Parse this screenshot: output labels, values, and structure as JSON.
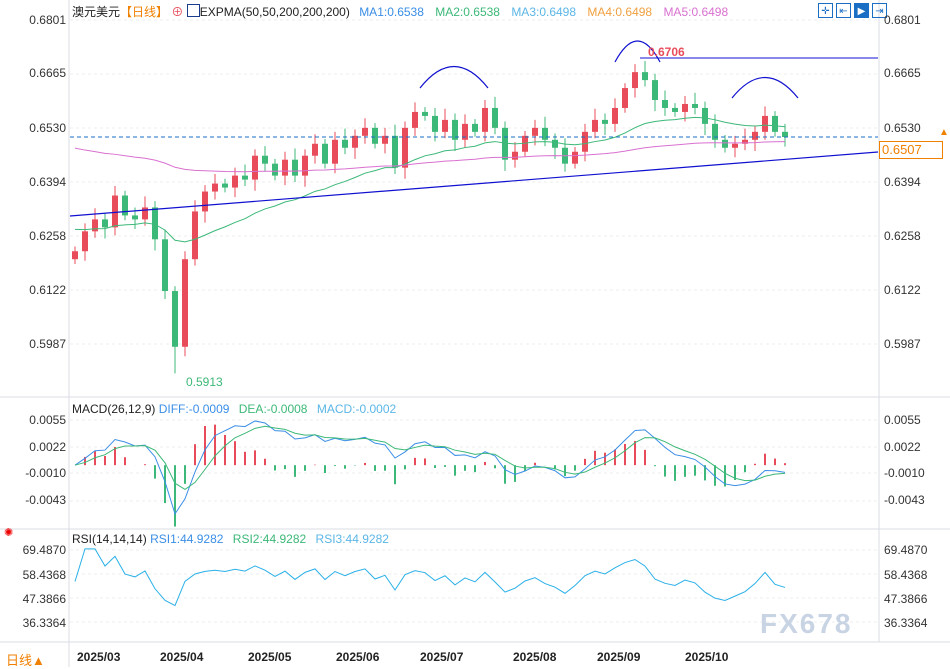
{
  "header": {
    "symbol": "澳元美元",
    "period": "【日线】",
    "indicator": "EXPMA(50,50,200,200,200)",
    "ma1": "MA1:0.6538",
    "ma2": "MA2:0.6538",
    "ma3": "MA3:0.6498",
    "ma4": "MA4:0.6498",
    "ma5": "MA5:0.6498"
  },
  "toolbar": [
    "crosshair",
    "fit-range",
    "play",
    "goto-end"
  ],
  "price_axis": [
    "0.6801",
    "0.6665",
    "0.6530",
    "0.6394",
    "0.6258",
    "0.6122",
    "0.5987"
  ],
  "current_price": "0.6507",
  "annotations": {
    "high": "0.6706",
    "low": "0.5913"
  },
  "macd": {
    "title": "MACD(26,12,9)",
    "diff": "DIFF:-0.0009",
    "dea": "DEA:-0.0008",
    "macd": "MACD:-0.0002",
    "axis": [
      "0.0055",
      "0.0022",
      "-0.0010",
      "-0.0043"
    ]
  },
  "rsi": {
    "title": "RSI(14,14,14)",
    "rsi1": "RSI1:44.9282",
    "rsi2": "RSI2:44.9282",
    "rsi3": "RSI3:44.9282",
    "axis": [
      "69.4870",
      "58.4368",
      "47.3866",
      "36.3364"
    ]
  },
  "footer": {
    "period_button": "日线▲",
    "months": [
      "2025/03",
      "2025/04",
      "2025/05",
      "2025/06",
      "2025/07",
      "2025/08",
      "2025/09",
      "2025/10"
    ]
  },
  "watermark": "FX678",
  "colors": {
    "up": "#e84c5a",
    "down": "#3cb878",
    "ema50": "#3cb878",
    "ema200": "#d970d0",
    "trendline": "#1010d0",
    "accent": "#f08000"
  },
  "chart_data": {
    "type": "candlestick",
    "closes": [
      0.622,
      0.627,
      0.63,
      0.628,
      0.636,
      0.631,
      0.63,
      0.633,
      0.625,
      0.612,
      0.598,
      0.62,
      0.632,
      0.637,
      0.639,
      0.638,
      0.641,
      0.64,
      0.646,
      0.644,
      0.641,
      0.645,
      0.641,
      0.646,
      0.649,
      0.644,
      0.65,
      0.648,
      0.651,
      0.653,
      0.649,
      0.651,
      0.643,
      0.653,
      0.657,
      0.656,
      0.652,
      0.655,
      0.65,
      0.654,
      0.652,
      0.658,
      0.653,
      0.645,
      0.647,
      0.651,
      0.653,
      0.65,
      0.648,
      0.644,
      0.647,
      0.652,
      0.655,
      0.654,
      0.658,
      0.663,
      0.667,
      0.665,
      0.66,
      0.658,
      0.657,
      0.659,
      0.658,
      0.654,
      0.65,
      0.648,
      0.649,
      0.65,
      0.652,
      0.656,
      0.652,
      0.6507
    ],
    "ylim": [
      0.5913,
      0.6801
    ]
  }
}
